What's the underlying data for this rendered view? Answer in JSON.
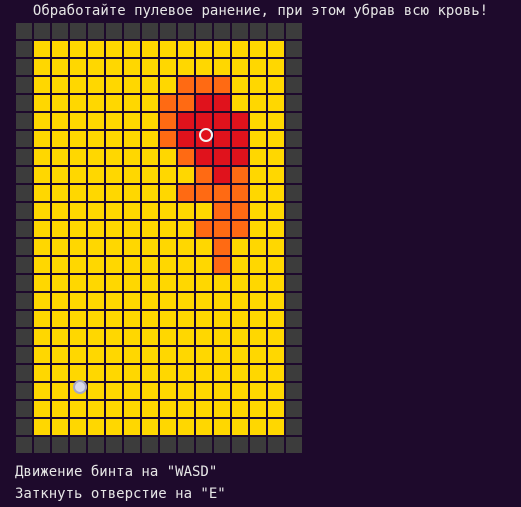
{
  "title": "Обработайте пулевое ранение, при этом убрав всю кровь!",
  "controls": {
    "move_hint": "Движение бинта на \"WASD\"",
    "plug_hint": "Заткнуть отверстие на \"E\""
  },
  "board": {
    "columns": 16,
    "rows": 24,
    "legend": {
      "#": "wall",
      "Y": "skin",
      "O": "bruise",
      "R": "blood"
    },
    "grid": [
      "################",
      "#YYYYYYYYYYYYYY#",
      "#YYYYYYYYYYYYYY#",
      "#YYYYYYYYOOOYYY#",
      "#YYYYYYYOORRYYY#",
      "#YYYYYYYORRRRYY#",
      "#YYYYYYYORRRRYY#",
      "#YYYYYYYYORRRYY#",
      "#YYYYYYYYYOROYY#",
      "#YYYYYYYYOOOOYY#",
      "#YYYYYYYYYYOOYY#",
      "#YYYYYYYYYOOOYY#",
      "#YYYYYYYYYYOYYY#",
      "#YYYYYYYYYYOYYY#",
      "#YYYYYYYYYYYYYY#",
      "#YYYYYYYYYYYYYY#",
      "#YYYYYYYYYYYYYY#",
      "#YYYYYYYYYYYYYY#",
      "#YYYYYYYYYYYYYY#",
      "#YYYYYYYYYYYYYY#",
      "#YYYYYYYYYYYYYY#",
      "#YYYYYYYYYYYYYY#",
      "#YYYYYYYYYYYYYY#",
      "################"
    ],
    "wound": {
      "col": 10,
      "row": 5
    },
    "bandage": {
      "col": 3,
      "row": 19
    }
  },
  "colors": {
    "background": "#1e0a2c",
    "wall": "#3c3c3c",
    "skin": "#ffd700",
    "bruise": "#ff6a13",
    "blood": "#e0121c",
    "wound_ring": "#f4f4f4",
    "bandage": "#d9d9e8",
    "text": "#e6e6e6"
  }
}
